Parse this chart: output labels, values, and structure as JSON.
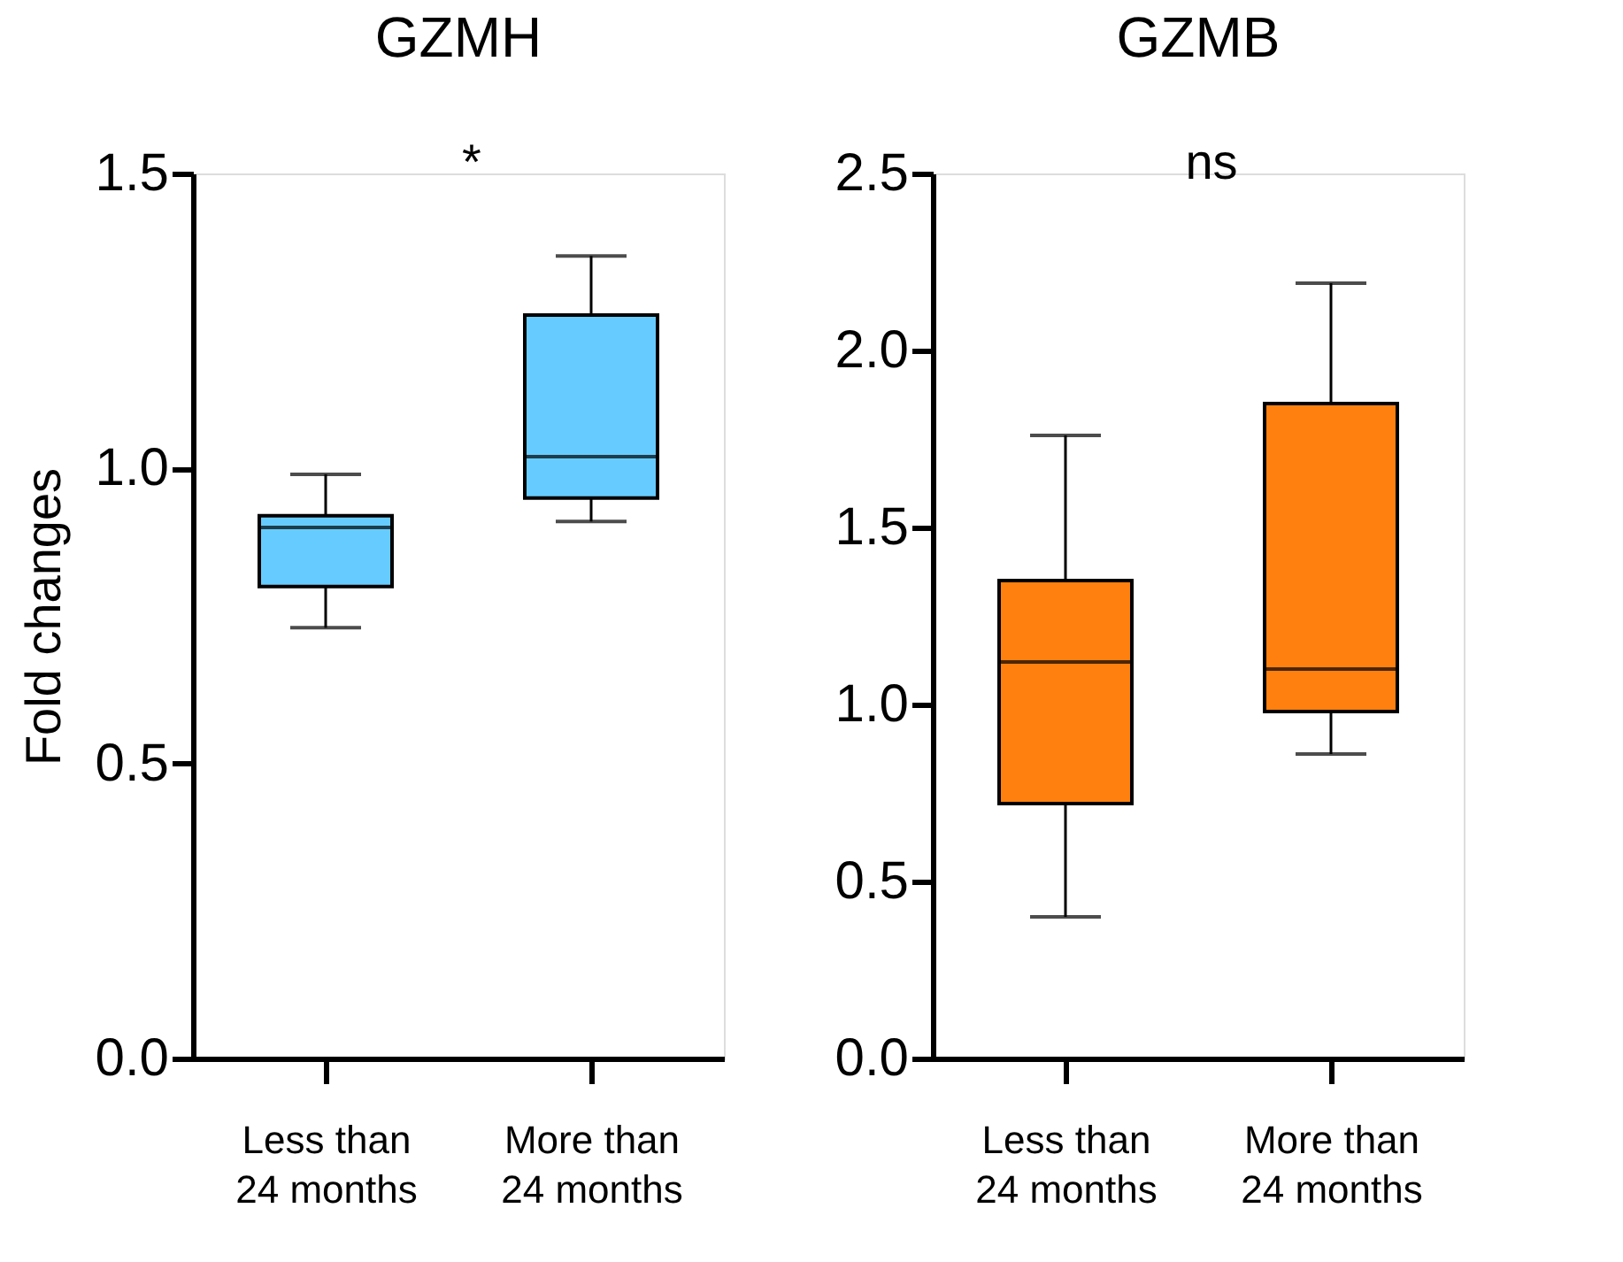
{
  "chart_data": [
    {
      "type": "box",
      "title": "GZMH",
      "ylabel": "Fold changes",
      "categories": [
        "Less than\n24 months",
        "More than\n24 months"
      ],
      "colors": [
        "#66ccff",
        "#66ccff"
      ],
      "boxes": [
        {
          "low": 0.73,
          "q1": 0.8,
          "median": 0.9,
          "q3": 0.92,
          "high": 0.99
        },
        {
          "low": 0.91,
          "q1": 0.95,
          "median": 1.02,
          "q3": 1.26,
          "high": 1.36
        }
      ],
      "ylim": [
        0,
        1.5
      ],
      "yticks": [
        {
          "value": 0,
          "label": "0.0"
        },
        {
          "value": 0.5,
          "label": "0.5"
        },
        {
          "value": 1,
          "label": "1.0"
        },
        {
          "value": 1.5,
          "label": "1.5"
        }
      ],
      "grid": false,
      "annotations": [
        "*"
      ]
    },
    {
      "type": "box",
      "title": "GZMB",
      "categories": [
        "Less than\n24 months",
        "More than\n24 months"
      ],
      "colors": [
        "#ff800e",
        "#ff800e"
      ],
      "boxes": [
        {
          "low": 0.4,
          "q1": 0.72,
          "median": 1.12,
          "q3": 1.35,
          "high": 1.76
        },
        {
          "low": 0.86,
          "q1": 0.98,
          "median": 1.1,
          "q3": 1.85,
          "high": 2.19
        }
      ],
      "ylim": [
        0,
        2.5
      ],
      "yticks": [
        {
          "value": 0,
          "label": "0.0"
        },
        {
          "value": 0.5,
          "label": "0.5"
        },
        {
          "value": 1,
          "label": "1.0"
        },
        {
          "value": 1.5,
          "label": "1.5"
        },
        {
          "value": 2,
          "label": "2.0"
        },
        {
          "value": 2.5,
          "label": "2.5"
        }
      ],
      "grid": false,
      "annotations": [
        "ns"
      ]
    }
  ]
}
